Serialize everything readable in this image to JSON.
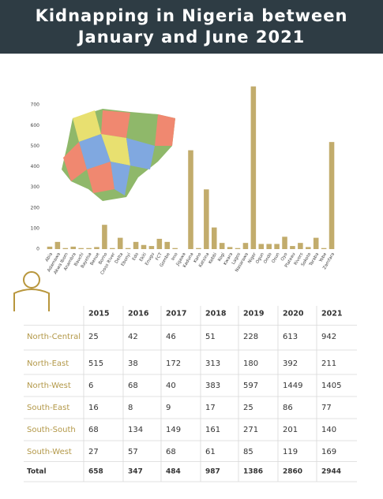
{
  "chart_data": {
    "type": "bar",
    "title": "Kidnapping in Nigeria between January and June 2021",
    "categories": [
      "Abia",
      "Adamawa",
      "Akwa Ibom",
      "Anambra",
      "Bauchi",
      "Bayelsa",
      "Benue",
      "Borno",
      "Cross River",
      "Delta",
      "Ebonyi",
      "Edo",
      "Ekiti",
      "Enugu",
      "FCT",
      "Gombe",
      "Imo",
      "Jigawa",
      "Kaduna",
      "Kano",
      "Katsina",
      "Kebbi",
      "Kogi",
      "Kwara",
      "Lagos",
      "Nasarawa",
      "Niger",
      "Ogun",
      "Ondo",
      "Osun",
      "Oyo",
      "Plateau",
      "Rivers",
      "Sokoto",
      "Taraba",
      "Yobe",
      "Zamfara"
    ],
    "values": [
      12,
      35,
      5,
      12,
      5,
      5,
      10,
      118,
      5,
      55,
      5,
      35,
      20,
      15,
      50,
      35,
      5,
      0,
      480,
      5,
      290,
      105,
      30,
      10,
      5,
      30,
      790,
      25,
      25,
      25,
      60,
      15,
      30,
      10,
      55,
      5,
      520
    ],
    "color": "#c2ac6c",
    "ylim": [
      0,
      800
    ],
    "yticks": [
      0,
      100,
      200,
      300,
      400,
      500,
      600,
      700
    ],
    "grid": false
  },
  "table": {
    "header": [
      "2015",
      "2016",
      "2017",
      "2018",
      "2019",
      "2020",
      "2021"
    ],
    "rows": [
      [
        "North-Central",
        25,
        42,
        46,
        51,
        228,
        613,
        942
      ],
      [
        "North-East",
        515,
        38,
        172,
        313,
        180,
        392,
        211
      ],
      [
        "North-West",
        6,
        68,
        40,
        383,
        597,
        1449,
        1405
      ],
      [
        "South-East",
        16,
        8,
        9,
        17,
        25,
        86,
        77
      ],
      [
        "South-South",
        68,
        134,
        149,
        161,
        271,
        201,
        140
      ],
      [
        "South-West",
        27,
        57,
        68,
        61,
        85,
        119,
        169
      ],
      [
        "Total",
        658,
        347,
        484,
        987,
        1386,
        2860,
        2944
      ]
    ]
  }
}
